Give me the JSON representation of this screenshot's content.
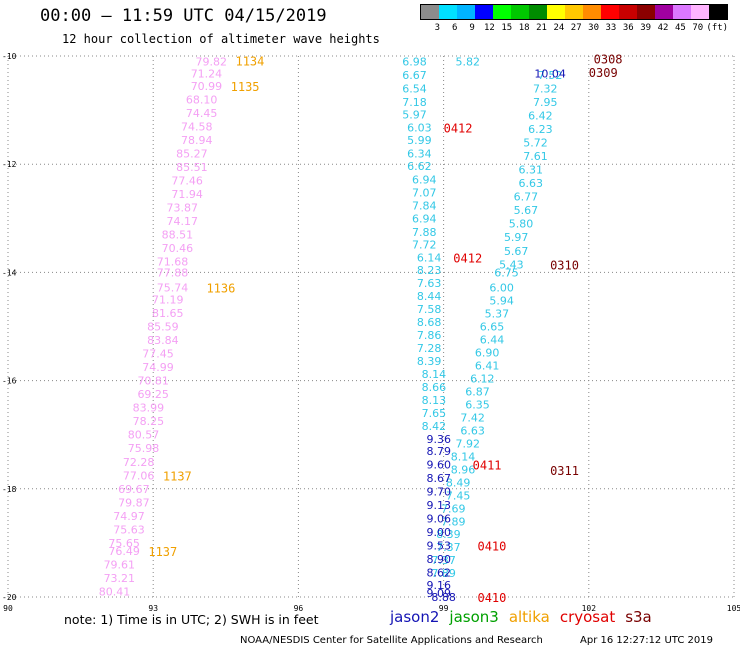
{
  "header": {
    "title": "00:00 – 11:59 UTC 04/15/2019",
    "subtitle": "12 hour collection of altimeter wave heights"
  },
  "colorbar": {
    "unit_label": "(ft)",
    "ticks": [
      "3",
      "6",
      "9",
      "12",
      "15",
      "18",
      "21",
      "24",
      "27",
      "30",
      "33",
      "36",
      "39",
      "42",
      "45",
      "70"
    ],
    "colors": [
      "#8c8c8c",
      "#00e0ff",
      "#00b4ff",
      "#0000ff",
      "#00ff00",
      "#00c800",
      "#008c00",
      "#ffff00",
      "#ffc800",
      "#ff8c00",
      "#ff0000",
      "#c80000",
      "#8b0000",
      "#a000a0",
      "#dc78ff",
      "#ffb4ff",
      "#000000"
    ]
  },
  "chart_data": {
    "type": "scatter",
    "title": "00:00 – 11:59 UTC 04/15/2019",
    "subtitle": "12 hour collection of altimeter wave heights",
    "xlabel": "",
    "ylabel": "",
    "xlim": [
      90,
      105
    ],
    "ylim": [
      -20,
      -10
    ],
    "xticks": [
      "90",
      "93",
      "96",
      "99",
      "102",
      "105"
    ],
    "yticks": [
      "-10",
      "-12",
      "-14",
      "-16",
      "-18",
      "-20"
    ],
    "grid": true,
    "series": [
      {
        "name": "altika",
        "color": "#f4a0f4",
        "points": [
          {
            "x": 94.2,
            "y": -10.1,
            "v": "79.82"
          },
          {
            "x": 94.1,
            "y": -10.32,
            "v": "71.24"
          },
          {
            "x": 94.1,
            "y": -10.55,
            "v": "70.99"
          },
          {
            "x": 94.0,
            "y": -10.8,
            "v": "68.10"
          },
          {
            "x": 94.0,
            "y": -11.05,
            "v": "74.45"
          },
          {
            "x": 93.9,
            "y": -11.3,
            "v": "74.58"
          },
          {
            "x": 93.9,
            "y": -11.55,
            "v": "78.94"
          },
          {
            "x": 93.8,
            "y": -11.8,
            "v": "85.27"
          },
          {
            "x": 93.8,
            "y": -12.05,
            "v": "85.51"
          },
          {
            "x": 93.7,
            "y": -12.3,
            "v": "77.46"
          },
          {
            "x": 93.7,
            "y": -12.55,
            "v": "71.94"
          },
          {
            "x": 93.6,
            "y": -12.8,
            "v": "73.87"
          },
          {
            "x": 93.6,
            "y": -13.05,
            "v": "74.17"
          },
          {
            "x": 93.5,
            "y": -13.3,
            "v": "88.51"
          },
          {
            "x": 93.5,
            "y": -13.55,
            "v": "70.46"
          },
          {
            "x": 93.4,
            "y": -13.8,
            "v": "71.68"
          },
          {
            "x": 93.4,
            "y": -14.0,
            "v": "77.88"
          },
          {
            "x": 93.4,
            "y": -14.28,
            "v": "75.74"
          },
          {
            "x": 93.3,
            "y": -14.5,
            "v": "71.19"
          },
          {
            "x": 93.3,
            "y": -14.75,
            "v": "81.65"
          },
          {
            "x": 93.2,
            "y": -15.0,
            "v": "85.59"
          },
          {
            "x": 93.2,
            "y": -15.25,
            "v": "83.84"
          },
          {
            "x": 93.1,
            "y": -15.5,
            "v": "77.45"
          },
          {
            "x": 93.1,
            "y": -15.75,
            "v": "74.99"
          },
          {
            "x": 93.0,
            "y": -16.0,
            "v": "70.81"
          },
          {
            "x": 93.0,
            "y": -16.25,
            "v": "69.25"
          },
          {
            "x": 92.9,
            "y": -16.5,
            "v": "83.99"
          },
          {
            "x": 92.9,
            "y": -16.75,
            "v": "78.25"
          },
          {
            "x": 92.8,
            "y": -17.0,
            "v": "80.57"
          },
          {
            "x": 92.8,
            "y": -17.25,
            "v": "75.98"
          },
          {
            "x": 92.7,
            "y": -17.5,
            "v": "72.28"
          },
          {
            "x": 92.7,
            "y": -17.75,
            "v": "77.06"
          },
          {
            "x": 92.6,
            "y": -18.0,
            "v": "69.67"
          },
          {
            "x": 92.6,
            "y": -18.25,
            "v": "79.87"
          },
          {
            "x": 92.5,
            "y": -18.5,
            "v": "74.97"
          },
          {
            "x": 92.5,
            "y": -18.75,
            "v": "75.63"
          },
          {
            "x": 92.4,
            "y": -19.0,
            "v": "75.65"
          },
          {
            "x": 92.4,
            "y": -19.15,
            "v": "76.49"
          },
          {
            "x": 92.3,
            "y": -19.4,
            "v": "79.61"
          },
          {
            "x": 92.3,
            "y": -19.65,
            "v": "73.21"
          },
          {
            "x": 92.2,
            "y": -19.9,
            "v": "80.41"
          }
        ]
      },
      {
        "name": "jason3",
        "color": "#33c8e6",
        "points": [
          {
            "x": 98.4,
            "y": -10.1,
            "v": "6.98"
          },
          {
            "x": 98.4,
            "y": -10.35,
            "v": "6.67"
          },
          {
            "x": 98.4,
            "y": -10.6,
            "v": "6.54"
          },
          {
            "x": 98.4,
            "y": -10.85,
            "v": "7.18"
          },
          {
            "x": 98.4,
            "y": -11.08,
            "v": "5.97"
          },
          {
            "x": 98.5,
            "y": -11.32,
            "v": "6.03"
          },
          {
            "x": 98.5,
            "y": -11.55,
            "v": "5.99"
          },
          {
            "x": 98.5,
            "y": -11.8,
            "v": "6.34"
          },
          {
            "x": 98.5,
            "y": -12.03,
            "v": "6.62"
          },
          {
            "x": 98.6,
            "y": -12.28,
            "v": "6.94"
          },
          {
            "x": 98.6,
            "y": -12.52,
            "v": "7.07"
          },
          {
            "x": 98.6,
            "y": -12.76,
            "v": "7.84"
          },
          {
            "x": 98.6,
            "y": -13.0,
            "v": "6.94"
          },
          {
            "x": 98.6,
            "y": -13.25,
            "v": "7.88"
          },
          {
            "x": 98.6,
            "y": -13.48,
            "v": "7.72"
          },
          {
            "x": 98.7,
            "y": -13.72,
            "v": "6.14"
          },
          {
            "x": 98.7,
            "y": -13.96,
            "v": "8.23"
          },
          {
            "x": 98.7,
            "y": -14.2,
            "v": "7.63"
          },
          {
            "x": 98.7,
            "y": -14.44,
            "v": "8.44"
          },
          {
            "x": 98.7,
            "y": -14.68,
            "v": "7.58"
          },
          {
            "x": 98.7,
            "y": -14.92,
            "v": "8.68"
          },
          {
            "x": 98.7,
            "y": -15.16,
            "v": "7.86"
          },
          {
            "x": 98.7,
            "y": -15.4,
            "v": "7.28"
          },
          {
            "x": 98.7,
            "y": -15.64,
            "v": "8.39"
          },
          {
            "x": 98.8,
            "y": -15.88,
            "v": "8.14"
          },
          {
            "x": 98.8,
            "y": -16.12,
            "v": "8.66"
          },
          {
            "x": 98.8,
            "y": -16.36,
            "v": "8.13"
          },
          {
            "x": 98.8,
            "y": -16.6,
            "v": "7.65"
          },
          {
            "x": 98.8,
            "y": -16.84,
            "v": "8.42"
          },
          {
            "x": 99.5,
            "y": -10.1,
            "v": "5.82"
          },
          {
            "x": 101.2,
            "y": -10.35,
            "v": "7.52"
          },
          {
            "x": 101.1,
            "y": -10.6,
            "v": "7.32"
          },
          {
            "x": 101.1,
            "y": -10.85,
            "v": "7.95"
          },
          {
            "x": 101.0,
            "y": -11.1,
            "v": "6.42"
          },
          {
            "x": 101.0,
            "y": -11.35,
            "v": "6.23"
          },
          {
            "x": 100.9,
            "y": -11.6,
            "v": "5.72"
          },
          {
            "x": 100.9,
            "y": -11.85,
            "v": "7.61"
          },
          {
            "x": 100.8,
            "y": -12.1,
            "v": "6.31"
          },
          {
            "x": 100.8,
            "y": -12.35,
            "v": "6.63"
          },
          {
            "x": 100.7,
            "y": -12.6,
            "v": "6.77"
          },
          {
            "x": 100.7,
            "y": -12.85,
            "v": "5.67"
          },
          {
            "x": 100.6,
            "y": -13.1,
            "v": "5.80"
          },
          {
            "x": 100.5,
            "y": -13.35,
            "v": "5.97"
          },
          {
            "x": 100.5,
            "y": -13.6,
            "v": "5.67"
          },
          {
            "x": 100.4,
            "y": -13.85,
            "v": "5.43"
          },
          {
            "x": 100.3,
            "y": -14.0,
            "v": "6.75"
          },
          {
            "x": 100.2,
            "y": -14.28,
            "v": "6.00"
          },
          {
            "x": 100.2,
            "y": -14.52,
            "v": "5.94"
          },
          {
            "x": 100.1,
            "y": -14.76,
            "v": "5.37"
          },
          {
            "x": 100.0,
            "y": -15.0,
            "v": "6.65"
          },
          {
            "x": 100.0,
            "y": -15.24,
            "v": "6.44"
          },
          {
            "x": 99.9,
            "y": -15.48,
            "v": "6.90"
          },
          {
            "x": 99.9,
            "y": -15.72,
            "v": "6.41"
          },
          {
            "x": 99.8,
            "y": -15.96,
            "v": "6.12"
          },
          {
            "x": 99.7,
            "y": -16.2,
            "v": "6.87"
          },
          {
            "x": 99.7,
            "y": -16.44,
            "v": "6.35"
          },
          {
            "x": 99.6,
            "y": -16.68,
            "v": "7.42"
          },
          {
            "x": 99.6,
            "y": -16.92,
            "v": "6.63"
          },
          {
            "x": 99.5,
            "y": -17.16,
            "v": "7.92"
          },
          {
            "x": 99.4,
            "y": -17.4,
            "v": "8.14"
          },
          {
            "x": 99.4,
            "y": -17.64,
            "v": "8.96"
          },
          {
            "x": 99.3,
            "y": -17.88,
            "v": "8.49"
          },
          {
            "x": 99.3,
            "y": -18.12,
            "v": "7.45"
          },
          {
            "x": 99.2,
            "y": -18.36,
            "v": "7.69"
          },
          {
            "x": 99.2,
            "y": -18.6,
            "v": "7.89"
          },
          {
            "x": 99.1,
            "y": -18.84,
            "v": "8.39"
          },
          {
            "x": 99.1,
            "y": -19.08,
            "v": "7.37"
          },
          {
            "x": 99.0,
            "y": -19.32,
            "v": "7.37"
          },
          {
            "x": 99.0,
            "y": -19.56,
            "v": "7.89"
          }
        ]
      },
      {
        "name": "jason2",
        "color": "#1414b4",
        "points": [
          {
            "x": 101.2,
            "y": -10.32,
            "v": "10.04"
          },
          {
            "x": 98.9,
            "y": -17.08,
            "v": "9.36"
          },
          {
            "x": 98.9,
            "y": -17.3,
            "v": "8.79"
          },
          {
            "x": 98.9,
            "y": -17.55,
            "v": "9.60"
          },
          {
            "x": 98.9,
            "y": -17.8,
            "v": "8.67"
          },
          {
            "x": 98.9,
            "y": -18.05,
            "v": "9.70"
          },
          {
            "x": 98.9,
            "y": -18.3,
            "v": "9.13"
          },
          {
            "x": 98.9,
            "y": -18.55,
            "v": "9.06"
          },
          {
            "x": 98.9,
            "y": -18.8,
            "v": "9.00"
          },
          {
            "x": 98.9,
            "y": -19.05,
            "v": "9.53"
          },
          {
            "x": 98.9,
            "y": -19.3,
            "v": "8.90"
          },
          {
            "x": 98.9,
            "y": -19.55,
            "v": "8.62"
          },
          {
            "x": 98.9,
            "y": -19.78,
            "v": "9.16"
          },
          {
            "x": 98.9,
            "y": -19.93,
            "v": "9.09"
          },
          {
            "x": 99.0,
            "y": -20.0,
            "v": "8.88"
          }
        ]
      }
    ],
    "annotations": [
      {
        "x": 94.7,
        "y": -10.08,
        "text": "1134",
        "series": "altika"
      },
      {
        "x": 94.6,
        "y": -10.55,
        "text": "1135",
        "series": "altika"
      },
      {
        "x": 94.1,
        "y": -14.28,
        "text": "1136",
        "series": "altika"
      },
      {
        "x": 93.2,
        "y": -17.75,
        "text": "1137",
        "series": "altika"
      },
      {
        "x": 92.9,
        "y": -19.15,
        "text": "1137",
        "series": "altika"
      },
      {
        "x": 99.0,
        "y": -11.32,
        "text": "0412",
        "series": "cryosat"
      },
      {
        "x": 99.2,
        "y": -13.72,
        "text": "0412",
        "series": "cryosat"
      },
      {
        "x": 99.6,
        "y": -17.55,
        "text": "0411",
        "series": "cryosat"
      },
      {
        "x": 99.7,
        "y": -19.05,
        "text": "0410",
        "series": "cryosat"
      },
      {
        "x": 99.7,
        "y": -20.0,
        "text": "0410",
        "series": "cryosat"
      },
      {
        "x": 102.1,
        "y": -10.05,
        "text": "0308",
        "series": "s3a"
      },
      {
        "x": 102.0,
        "y": -10.3,
        "text": "0309",
        "series": "s3a"
      },
      {
        "x": 101.2,
        "y": -13.85,
        "text": "0310",
        "series": "s3a"
      },
      {
        "x": 101.2,
        "y": -17.65,
        "text": "0311",
        "series": "s3a"
      }
    ],
    "legend": [
      "jason2",
      "jason3",
      "altika",
      "cryosat",
      "s3a"
    ]
  },
  "annotation_colors": {
    "altika": "#f0a000",
    "cryosat": "#e00000",
    "s3a": "#780000"
  },
  "footer": {
    "note": "note: 1) Time is in UTC; 2) SWH is in feet",
    "legend_items": [
      {
        "label": "jason2",
        "color": "#1414b4"
      },
      {
        "label": "jason3",
        "color": "#00a000"
      },
      {
        "label": "altika",
        "color": "#f0a000"
      },
      {
        "label": "cryosat",
        "color": "#e00000"
      },
      {
        "label": "s3a",
        "color": "#780000"
      }
    ],
    "credit": "NOAA/NESDIS Center for Satellite Applications and Research",
    "timestamp": "Apr 16 12:27:12 UTC 2019"
  }
}
